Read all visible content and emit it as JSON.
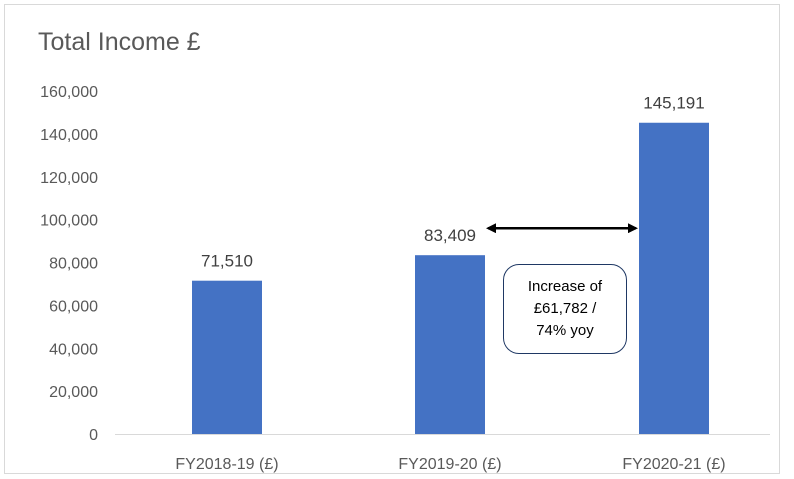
{
  "chart_data": {
    "type": "bar",
    "title": "Total Income £",
    "categories": [
      "FY2018-19 (£)",
      "FY2019-20 (£)",
      "FY2020-21 (£)"
    ],
    "values": [
      71510,
      83409,
      145191
    ],
    "data_labels": [
      "71,510",
      "83,409",
      "145,191"
    ],
    "ylim": [
      0,
      160000
    ],
    "yticks": [
      0,
      20000,
      40000,
      60000,
      80000,
      100000,
      120000,
      140000,
      160000
    ],
    "ytick_labels": [
      "0",
      "20,000",
      "40,000",
      "60,000",
      "80,000",
      "100,000",
      "120,000",
      "140,000",
      "160,000"
    ],
    "grid": false,
    "legend": "none",
    "bar_color": "#4472c4",
    "annotation": {
      "lines": [
        "Increase of",
        "£61,782 /",
        "74% yoy"
      ],
      "from_category": "FY2019-20 (£)",
      "to_category": "FY2020-21 (£)",
      "y_value": 96000
    }
  }
}
